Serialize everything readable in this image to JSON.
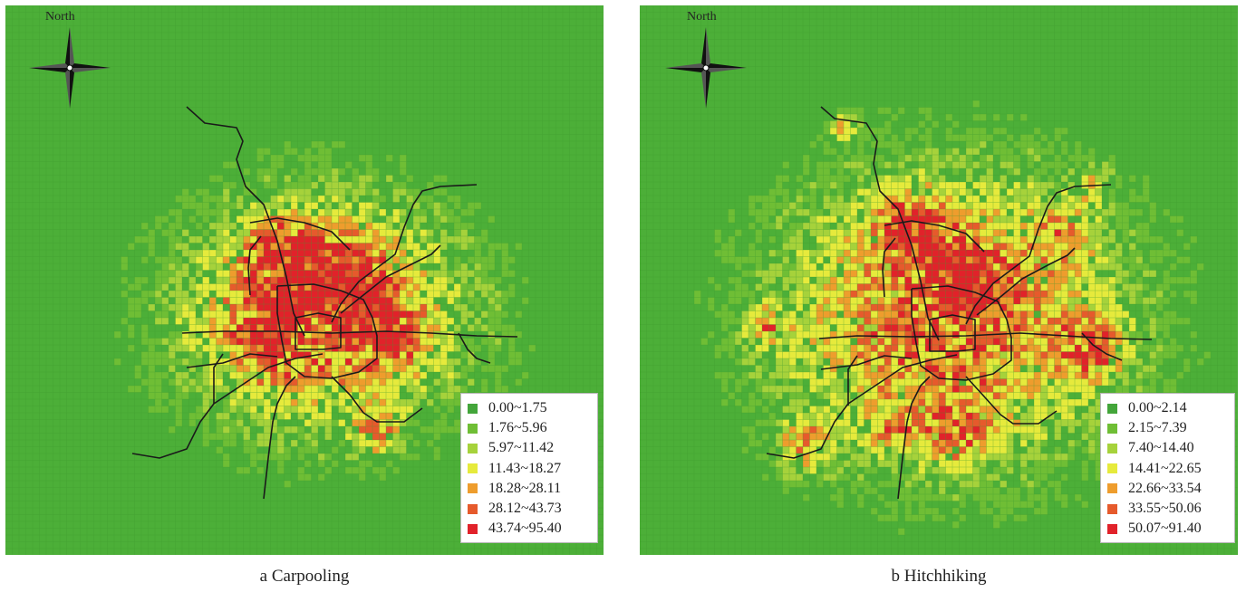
{
  "figure": {
    "panels": [
      {
        "id": "a",
        "compass_label": "North",
        "caption": "a Carpooling",
        "legend": {
          "classes": [
            {
              "label": "0.00~1.75",
              "color": "#43a53a"
            },
            {
              "label": "1.76~5.96",
              "color": "#6fbe35"
            },
            {
              "label": "5.97~11.42",
              "color": "#a6d23b"
            },
            {
              "label": "11.43~18.27",
              "color": "#e6ea3c"
            },
            {
              "label": "18.28~28.11",
              "color": "#ee9d2d"
            },
            {
              "label": "28.12~43.73",
              "color": "#e65a2c"
            },
            {
              "label": "43.74~95.40",
              "color": "#e1222a"
            }
          ]
        }
      },
      {
        "id": "b",
        "compass_label": "North",
        "caption": "b Hitchhiking",
        "legend": {
          "classes": [
            {
              "label": "0.00~2.14",
              "color": "#43a53a"
            },
            {
              "label": "2.15~7.39",
              "color": "#6fbe35"
            },
            {
              "label": "7.40~14.40",
              "color": "#a6d23b"
            },
            {
              "label": "14.41~22.65",
              "color": "#e6ea3c"
            },
            {
              "label": "22.66~33.54",
              "color": "#ee9d2d"
            },
            {
              "label": "33.55~50.06",
              "color": "#e65a2c"
            },
            {
              "label": "50.07~91.40",
              "color": "#e1222a"
            }
          ]
        }
      }
    ],
    "colors": {
      "base_cell": "#4caf38",
      "grid_line": "#3f9a30",
      "metro_line": "#1a1a1a"
    }
  }
}
